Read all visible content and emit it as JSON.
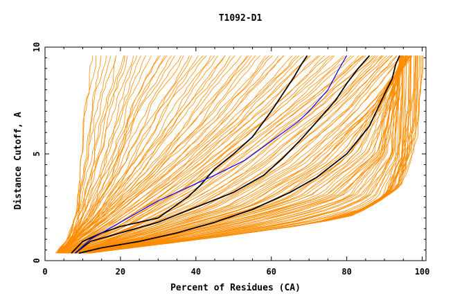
{
  "chart_data": {
    "type": "line",
    "title": "T1092-D1",
    "xlabel": "Percent of Residues (CA)",
    "ylabel": "Distance Cutoff, A",
    "xlim": [
      0,
      101
    ],
    "ylim": [
      0,
      10
    ],
    "x_ticks": [
      0,
      20,
      40,
      60,
      80,
      100
    ],
    "y_ticks": [
      0,
      5,
      10
    ],
    "x_tick_labels": [
      "0",
      "20",
      "40",
      "60",
      "80",
      "100"
    ],
    "y_tick_labels": [
      "0",
      "5",
      "10"
    ],
    "grid": false,
    "legend": "none",
    "colors": {
      "background_models": "#ff8c00",
      "highlight_black": "#000000",
      "highlight_blue": "#0000ff"
    },
    "background_model_count": 150,
    "background_reference_curves": [
      {
        "x": [
          3,
          6,
          8,
          9,
          10,
          11,
          12
        ],
        "y": [
          0.35,
          1,
          2.5,
          5,
          7,
          8,
          9.6
        ]
      },
      {
        "x": [
          4,
          12,
          20,
          28,
          36
        ],
        "y": [
          0.35,
          2,
          4.5,
          7.5,
          9.6
        ]
      },
      {
        "x": [
          4,
          15,
          30,
          45,
          60
        ],
        "y": [
          0.35,
          1.8,
          4,
          6.5,
          9.6
        ]
      },
      {
        "x": [
          5,
          20,
          40,
          55,
          70,
          84
        ],
        "y": [
          0.35,
          1.5,
          3.5,
          5.5,
          7.5,
          9.6
        ]
      },
      {
        "x": [
          6,
          25,
          50,
          70,
          85,
          97
        ],
        "y": [
          0.35,
          1.2,
          2.5,
          4.5,
          7,
          9.6
        ]
      },
      {
        "x": [
          8,
          30,
          55,
          75,
          88,
          95
        ],
        "y": [
          0.35,
          1,
          2,
          3,
          5,
          9.6
        ]
      },
      {
        "x": [
          10,
          40,
          70,
          85,
          90,
          94
        ],
        "y": [
          0.35,
          1,
          1.7,
          2.4,
          3,
          4.8
        ]
      },
      {
        "x": [
          12,
          50,
          80,
          95,
          99,
          100
        ],
        "y": [
          0.35,
          1.2,
          2,
          3.5,
          6,
          8
        ]
      }
    ],
    "series": [
      {
        "color": "#000000",
        "x": [
          7,
          10,
          15,
          20,
          30,
          38,
          41,
          45,
          50,
          55,
          60,
          63,
          66,
          68,
          69.5
        ],
        "y": [
          0.35,
          0.9,
          1.3,
          1.6,
          2.0,
          3.0,
          3.5,
          4.3,
          5.0,
          5.8,
          7.0,
          7.8,
          8.6,
          9.2,
          9.6
        ]
      },
      {
        "color": "#000000",
        "x": [
          8,
          12,
          20,
          30,
          40,
          50,
          58,
          63,
          68,
          72,
          77,
          80,
          83,
          86
        ],
        "y": [
          0.35,
          0.9,
          1.3,
          1.8,
          2.5,
          3.2,
          4.0,
          4.8,
          5.7,
          6.5,
          7.5,
          8.3,
          9.0,
          9.6
        ]
      },
      {
        "color": "#000000",
        "x": [
          9,
          15,
          25,
          35,
          45,
          55,
          65,
          72,
          80,
          86,
          90,
          92,
          93,
          94
        ],
        "y": [
          0.35,
          0.6,
          0.9,
          1.3,
          1.8,
          2.4,
          3.2,
          3.9,
          5.0,
          6.3,
          7.8,
          8.5,
          9.2,
          9.6
        ]
      },
      {
        "color": "#0000ff",
        "x": [
          8,
          12,
          20,
          30,
          40,
          45,
          53,
          60,
          67,
          70,
          75,
          78,
          80
        ],
        "y": [
          0.35,
          1.0,
          1.8,
          2.8,
          3.6,
          4.0,
          4.7,
          5.6,
          6.5,
          7.0,
          8.0,
          9.0,
          9.6
        ]
      }
    ]
  }
}
